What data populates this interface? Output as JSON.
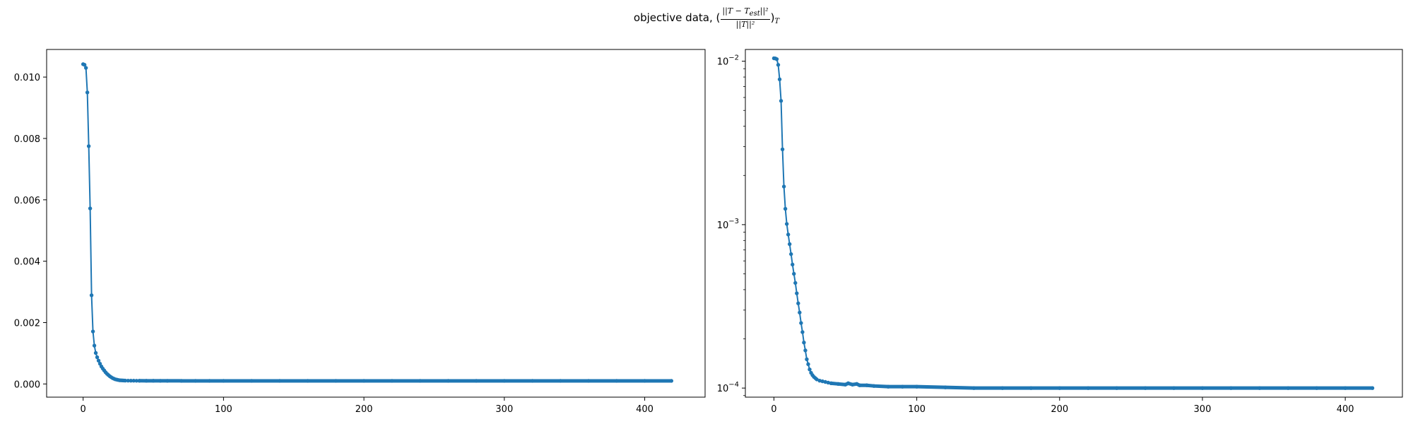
{
  "title": {
    "prefix": "objective data, (",
    "frac_num": "||T − T",
    "frac_num_sub": "est",
    "frac_num_tail": "||²",
    "frac_den": "||T||²",
    "suffix": ")",
    "suffix_sub": "T"
  },
  "colors": {
    "line": "#1f77b4",
    "axes": "#000000"
  },
  "chart_data": [
    {
      "type": "line",
      "scale": "linear",
      "xlabel": "",
      "ylabel": "",
      "xlim": [
        -26,
        443
      ],
      "ylim": [
        -0.00043,
        0.0109
      ],
      "xticks": [
        0,
        100,
        200,
        300,
        400
      ],
      "xtick_labels": [
        "0",
        "100",
        "200",
        "300",
        "400"
      ],
      "yticks": [
        0.0,
        0.002,
        0.004,
        0.006,
        0.008,
        0.01
      ],
      "ytick_labels": [
        "0.000",
        "0.002",
        "0.004",
        "0.006",
        "0.008",
        "0.010"
      ],
      "marker": "dot",
      "series": [
        {
          "x": [
            0,
            1,
            2,
            3,
            4,
            5,
            6,
            7,
            8,
            9,
            10,
            11,
            12,
            13,
            14,
            15,
            16,
            17,
            18,
            19,
            20,
            21,
            22,
            23,
            24,
            25,
            26,
            27,
            28,
            29,
            30,
            32,
            34,
            36,
            38,
            40,
            45,
            50,
            55,
            60,
            70,
            80,
            90,
            100,
            120,
            140,
            160,
            180,
            200,
            220,
            240,
            260,
            280,
            300,
            320,
            340,
            360,
            380,
            400,
            419
          ],
          "y": [
            0.01042,
            0.0104,
            0.0103,
            0.0095,
            0.00775,
            0.00572,
            0.00289,
            0.00171,
            0.00125,
            0.00101,
            0.00087,
            0.00076,
            0.00066,
            0.00057,
            0.0005,
            0.00044,
            0.00038,
            0.00033,
            0.00029,
            0.00025,
            0.00022,
            0.00019,
            0.00017,
            0.00015,
            0.00014,
            0.00013,
            0.00012,
            0.000118,
            0.000115,
            0.000112,
            0.00011,
            0.000108,
            0.000107,
            0.000106,
            0.000105,
            0.000104,
            0.000103,
            0.000103,
            0.000102,
            0.000102,
            0.000101,
            0.000101,
            0.000101,
            0.0001,
            0.0001,
            0.0001,
            0.0001,
            0.0001,
            0.0001,
            0.0001,
            0.0001,
            0.0001,
            0.0001,
            0.0001,
            0.0001,
            0.0001,
            0.0001,
            0.0001,
            0.0001,
            0.0001
          ]
        }
      ]
    },
    {
      "type": "line",
      "scale": "log",
      "xlabel": "",
      "ylabel": "",
      "xlim": [
        -20,
        440
      ],
      "ylim": [
        8.8e-05,
        0.0118
      ],
      "xticks": [
        0,
        100,
        200,
        300,
        400
      ],
      "xtick_labels": [
        "0",
        "100",
        "200",
        "300",
        "400"
      ],
      "yticks": [
        0.0001,
        0.001,
        0.01
      ],
      "ytick_base": "10",
      "ytick_exponents": [
        "−4",
        "−3",
        "−2"
      ],
      "marker": "dot",
      "series": [
        {
          "x": [
            0,
            1,
            2,
            3,
            4,
            5,
            6,
            7,
            8,
            9,
            10,
            11,
            12,
            13,
            14,
            15,
            16,
            17,
            18,
            19,
            20,
            21,
            22,
            23,
            24,
            25,
            26,
            27,
            28,
            29,
            30,
            32,
            34,
            36,
            38,
            40,
            45,
            50,
            52,
            55,
            58,
            60,
            65,
            70,
            80,
            90,
            100,
            120,
            140,
            160,
            180,
            200,
            220,
            240,
            260,
            280,
            300,
            320,
            340,
            360,
            380,
            400,
            419
          ],
          "y": [
            0.01042,
            0.0104,
            0.0103,
            0.0095,
            0.00775,
            0.00572,
            0.00289,
            0.00171,
            0.00125,
            0.00101,
            0.00087,
            0.00076,
            0.00066,
            0.00057,
            0.0005,
            0.00044,
            0.00038,
            0.00033,
            0.00029,
            0.00025,
            0.00022,
            0.00019,
            0.00017,
            0.00015,
            0.00014,
            0.00013,
            0.000124,
            0.00012,
            0.000117,
            0.000115,
            0.000113,
            0.000111,
            0.00011,
            0.000109,
            0.000108,
            0.000107,
            0.000106,
            0.000105,
            0.000107,
            0.000105,
            0.000106,
            0.000104,
            0.000104,
            0.000103,
            0.000102,
            0.000102,
            0.000102,
            0.000101,
            0.0001,
            0.0001,
            0.0001,
            0.0001,
            0.0001,
            0.0001,
            0.0001,
            0.0001,
            0.0001,
            0.0001,
            0.0001,
            0.0001,
            0.0001,
            0.0001,
            0.0001
          ]
        }
      ]
    }
  ]
}
